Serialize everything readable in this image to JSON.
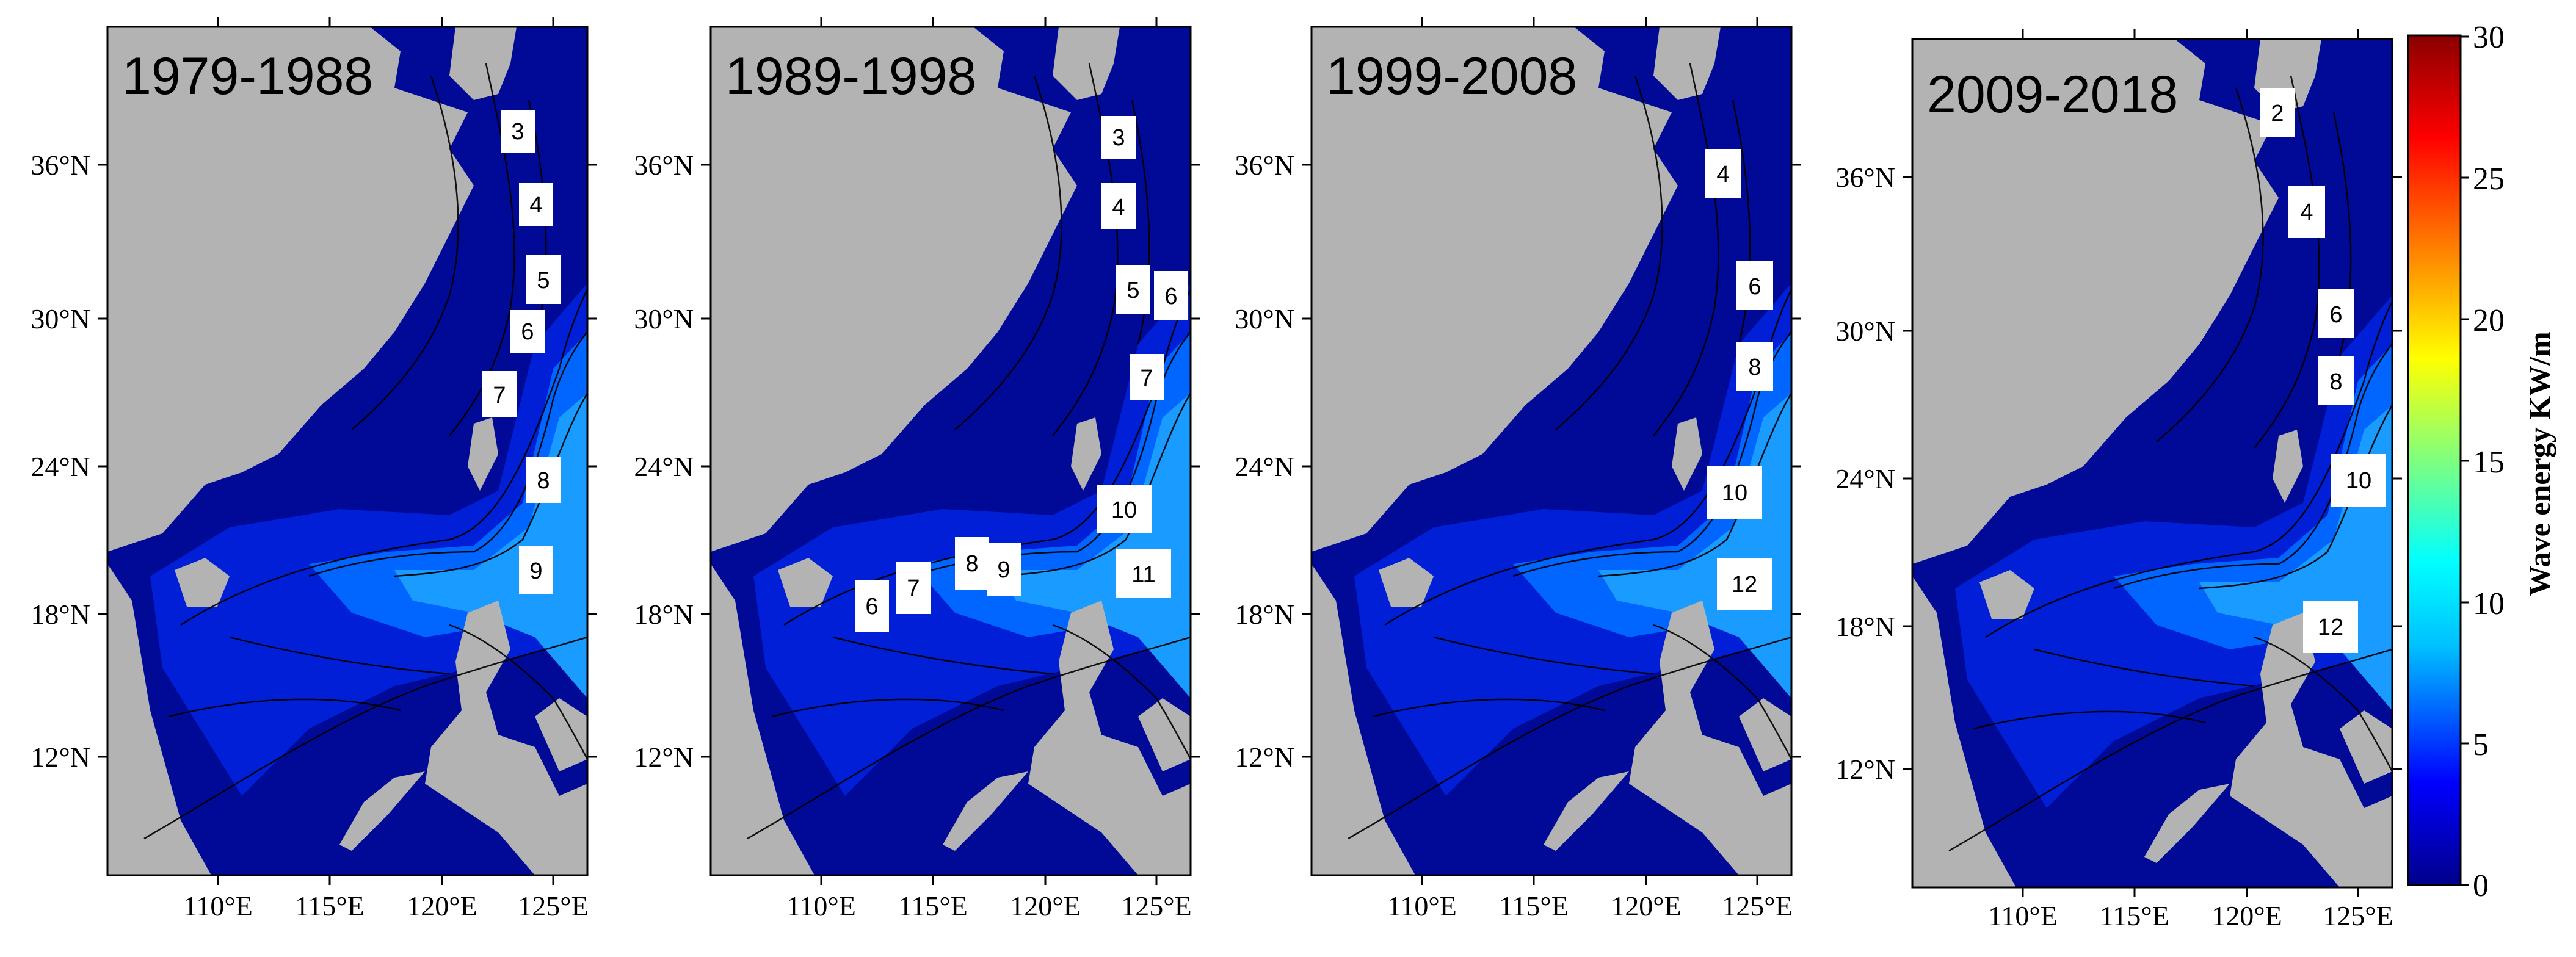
{
  "figure": {
    "panels": [
      {
        "title": "1979-1988",
        "contour_labels": [
          "3",
          "4",
          "5",
          "6",
          "7",
          "8",
          "9"
        ]
      },
      {
        "title": "1989-1998",
        "contour_labels": [
          "3",
          "4",
          "5",
          "6",
          "7",
          "10",
          "11",
          "6",
          "7",
          "8",
          "9"
        ]
      },
      {
        "title": "1999-2008",
        "contour_labels": [
          "4",
          "6",
          "8",
          "10",
          "12"
        ]
      },
      {
        "title": "2009-2018",
        "contour_labels": [
          "2",
          "4",
          "6",
          "8",
          "10",
          "12"
        ]
      }
    ],
    "lon_ticks": [
      "110°E",
      "115°E",
      "120°E",
      "125°E"
    ],
    "lat_ticks": [
      "36°N",
      "30°N",
      "24°N",
      "18°N",
      "12°N"
    ],
    "colorbar": {
      "title": "Wave energy KW/m",
      "ticks": [
        "30",
        "25",
        "20",
        "15",
        "10",
        "5",
        "0"
      ],
      "range": [
        0,
        30
      ],
      "colors": [
        "#00008b",
        "#0000ff",
        "#00bfff",
        "#00ffff",
        "#7fff7f",
        "#ffff00",
        "#ff7f00",
        "#ff0000",
        "#8b0000"
      ]
    },
    "colors": {
      "land": "#b3b3b3",
      "deep_low": "#000a96",
      "low": "#001fd6",
      "mid": "#0066ff",
      "mid_high": "#1a9bff",
      "high": "#00d6ff"
    }
  }
}
